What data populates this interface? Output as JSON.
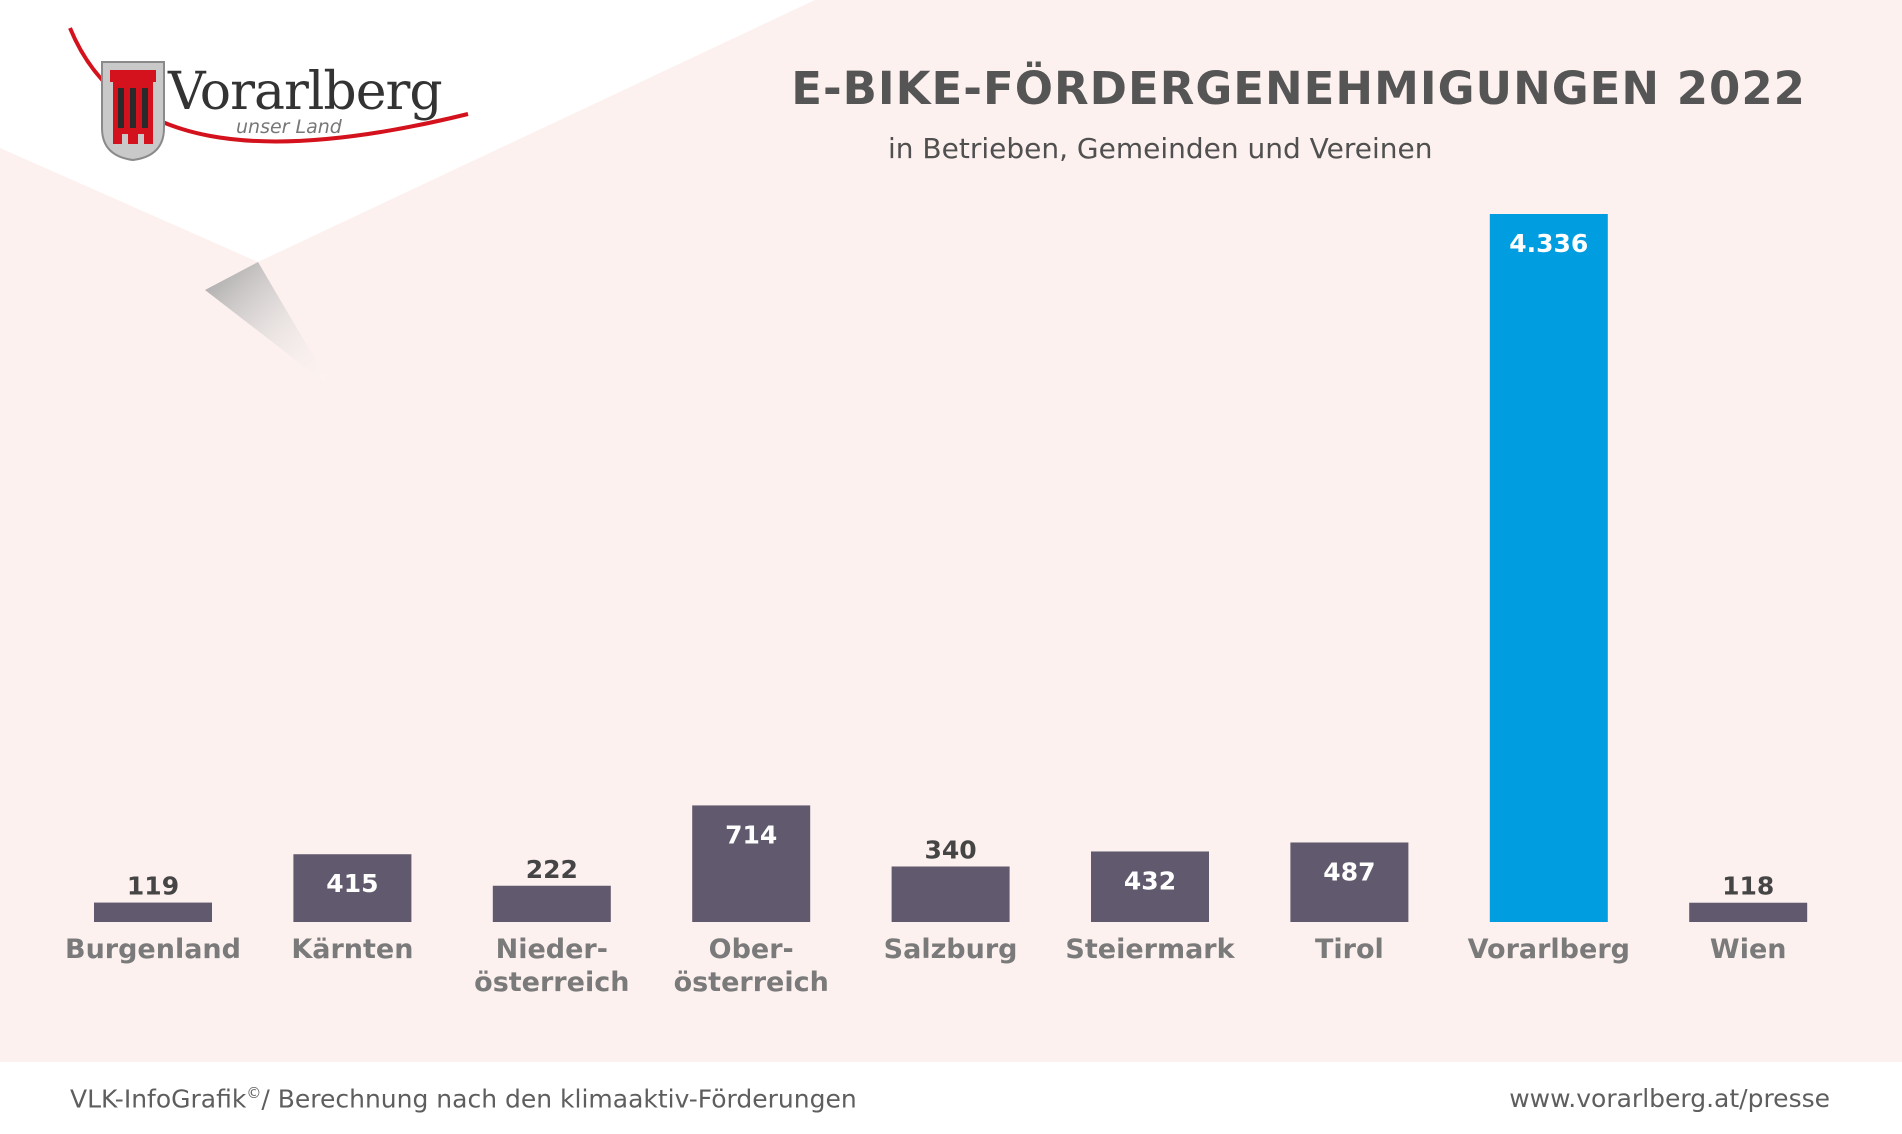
{
  "logo": {
    "name": "Vorarlberg",
    "tagline": "unser Land"
  },
  "footer": {
    "source_prefix": "VLK-InfoGrafik",
    "source_mark": "©",
    "source_suffix": "/ Berechnung nach den klimaaktiv-Förderungen",
    "url": "www.vorarlberg.at/presse"
  },
  "colors": {
    "background": "#fcf1ef",
    "bar_default": "#615a6e",
    "bar_highlight": "#009ee0",
    "label_gray": "#7a7a7a",
    "value_dark": "#454545",
    "value_light": "#ffffff"
  },
  "chart_data": {
    "type": "bar",
    "title": "E-BIKE-FÖRDERGENEHMIGUNGEN 2022",
    "subtitle": "in Betrieben, Gemeinden und Vereinen",
    "categories": [
      [
        "Burgenland"
      ],
      [
        "Kärnten"
      ],
      [
        "Nieder-",
        "österreich"
      ],
      [
        "Ober-",
        "österreich"
      ],
      [
        "Salzburg"
      ],
      [
        "Steiermark"
      ],
      [
        "Tirol"
      ],
      [
        "Vorarlberg"
      ],
      [
        "Wien"
      ]
    ],
    "values": [
      119,
      415,
      222,
      714,
      340,
      432,
      487,
      4336,
      118
    ],
    "value_labels": [
      "119",
      "415",
      "222",
      "714",
      "340",
      "432",
      "487",
      "4.336",
      "118"
    ],
    "highlight_index": 7,
    "ylim": [
      0,
      4336
    ],
    "grid": false,
    "legend": "none"
  }
}
